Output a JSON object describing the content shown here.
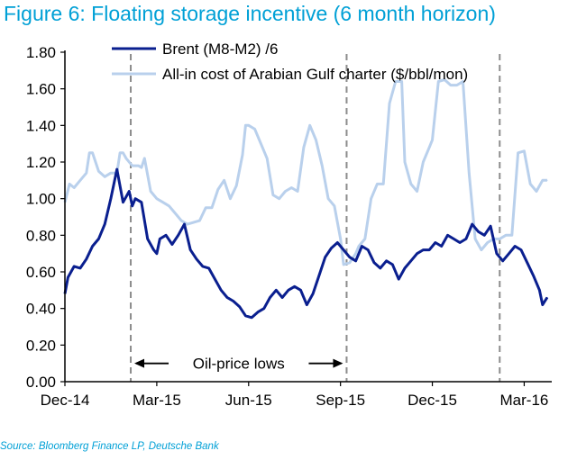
{
  "title": "Figure 6: Floating storage incentive (6 month horizon)",
  "source": "Source: Bloomberg Finance LP, Deutsche Bank",
  "colors": {
    "brent": "#0a1f8f",
    "charter": "#b9d0ec",
    "vline": "#8c8c8c",
    "title": "#00a0d6"
  },
  "chart_data": {
    "type": "line",
    "title": "Figure 6: Floating storage incentive (6 month horizon)",
    "xlabel": "",
    "ylabel": "",
    "ylim": [
      0,
      1.8
    ],
    "yticks": [
      "0.00",
      "0.20",
      "0.40",
      "0.60",
      "0.80",
      "1.00",
      "1.20",
      "1.40",
      "1.60",
      "1.80"
    ],
    "yticks_values": [
      0,
      0.2,
      0.4,
      0.6,
      0.8,
      1.0,
      1.2,
      1.4,
      1.6,
      1.8
    ],
    "xlim": [
      0,
      15.9
    ],
    "xticks": [
      "Dec-14",
      "Mar-15",
      "Jun-15",
      "Sep-15",
      "Dec-15",
      "Mar-16"
    ],
    "xticks_values": [
      0,
      3,
      6,
      9,
      12,
      15
    ],
    "x_unit": "months since Dec-14",
    "grid": false,
    "legend_position": "top",
    "series": [
      {
        "name": "Brent (M8-M2) /6",
        "x": [
          0,
          0.1,
          0.3,
          0.5,
          0.7,
          0.9,
          1.1,
          1.3,
          1.5,
          1.7,
          1.9,
          2.1,
          2.2,
          2.3,
          2.5,
          2.7,
          2.9,
          3.0,
          3.1,
          3.3,
          3.5,
          3.7,
          3.9,
          4.1,
          4.3,
          4.5,
          4.7,
          4.9,
          5.1,
          5.3,
          5.5,
          5.7,
          5.9,
          6.1,
          6.3,
          6.5,
          6.7,
          6.9,
          7.1,
          7.3,
          7.5,
          7.7,
          7.9,
          8.1,
          8.3,
          8.5,
          8.7,
          8.9,
          9.1,
          9.3,
          9.5,
          9.7,
          9.9,
          10.1,
          10.3,
          10.5,
          10.7,
          10.9,
          11.1,
          11.3,
          11.5,
          11.7,
          11.9,
          12.1,
          12.3,
          12.5,
          12.7,
          12.9,
          13.1,
          13.3,
          13.5,
          13.7,
          13.9,
          14.1,
          14.3,
          14.5,
          14.7,
          14.9,
          15.1,
          15.3,
          15.5,
          15.6,
          15.75
        ],
        "y": [
          0.48,
          0.57,
          0.63,
          0.62,
          0.67,
          0.74,
          0.78,
          0.86,
          1.0,
          1.16,
          0.98,
          1.04,
          0.96,
          1.0,
          0.98,
          0.78,
          0.72,
          0.7,
          0.78,
          0.8,
          0.75,
          0.8,
          0.86,
          0.72,
          0.67,
          0.63,
          0.62,
          0.56,
          0.5,
          0.46,
          0.44,
          0.41,
          0.36,
          0.35,
          0.38,
          0.4,
          0.46,
          0.5,
          0.46,
          0.5,
          0.52,
          0.5,
          0.42,
          0.48,
          0.58,
          0.68,
          0.73,
          0.76,
          0.72,
          0.68,
          0.66,
          0.74,
          0.72,
          0.65,
          0.62,
          0.66,
          0.64,
          0.56,
          0.62,
          0.66,
          0.7,
          0.72,
          0.72,
          0.76,
          0.74,
          0.8,
          0.78,
          0.76,
          0.78,
          0.86,
          0.82,
          0.8,
          0.85,
          0.7,
          0.66,
          0.7,
          0.74,
          0.72,
          0.65,
          0.58,
          0.5,
          0.42,
          0.46
        ]
      },
      {
        "name": "All-in cost of Arabian Gulf charter ($/bbl/mon)",
        "x": [
          0,
          0.15,
          0.3,
          0.5,
          0.7,
          0.8,
          0.9,
          1.0,
          1.1,
          1.3,
          1.5,
          1.7,
          1.8,
          1.9,
          2.0,
          2.2,
          2.4,
          2.5,
          2.6,
          2.8,
          3.0,
          3.2,
          3.4,
          3.6,
          3.8,
          4.0,
          4.2,
          4.4,
          4.6,
          4.8,
          5.0,
          5.2,
          5.4,
          5.6,
          5.8,
          5.9,
          6.0,
          6.2,
          6.4,
          6.6,
          6.8,
          7.0,
          7.2,
          7.4,
          7.6,
          7.8,
          8.0,
          8.2,
          8.4,
          8.6,
          8.8,
          9.0,
          9.1,
          9.3,
          9.5,
          9.6,
          9.8,
          10.0,
          10.2,
          10.4,
          10.6,
          10.8,
          11.0,
          11.1,
          11.3,
          11.5,
          11.7,
          11.9,
          12.0,
          12.2,
          12.4,
          12.6,
          12.8,
          13.0,
          13.2,
          13.4,
          13.6,
          13.8,
          14.0,
          14.2,
          14.4,
          14.6,
          14.8,
          15.0,
          15.2,
          15.4,
          15.6,
          15.75
        ],
        "y": [
          0.98,
          1.08,
          1.06,
          1.1,
          1.14,
          1.25,
          1.25,
          1.2,
          1.15,
          1.12,
          1.14,
          1.14,
          1.25,
          1.25,
          1.22,
          1.18,
          1.18,
          1.17,
          1.22,
          1.04,
          1.0,
          0.98,
          0.96,
          0.92,
          0.88,
          0.86,
          0.87,
          0.88,
          0.95,
          0.95,
          1.05,
          1.1,
          1.0,
          1.07,
          1.24,
          1.4,
          1.4,
          1.38,
          1.3,
          1.22,
          1.02,
          1.0,
          1.04,
          1.06,
          1.04,
          1.28,
          1.4,
          1.32,
          1.18,
          1.0,
          0.96,
          0.78,
          0.64,
          0.65,
          0.7,
          0.74,
          0.78,
          1.0,
          1.08,
          1.08,
          1.52,
          1.64,
          1.64,
          1.2,
          1.08,
          1.04,
          1.2,
          1.28,
          1.32,
          1.64,
          1.65,
          1.62,
          1.62,
          1.64,
          1.14,
          0.78,
          0.72,
          0.76,
          0.78,
          0.78,
          0.8,
          0.8,
          1.25,
          1.26,
          1.08,
          1.04,
          1.1,
          1.1
        ]
      }
    ],
    "vlines_x": [
      2.15,
      9.2,
      14.2
    ],
    "annotations": [
      {
        "text": "Oil-price lows",
        "x_start": 2.15,
        "x_end": 9.2,
        "y": 0.1
      }
    ]
  }
}
